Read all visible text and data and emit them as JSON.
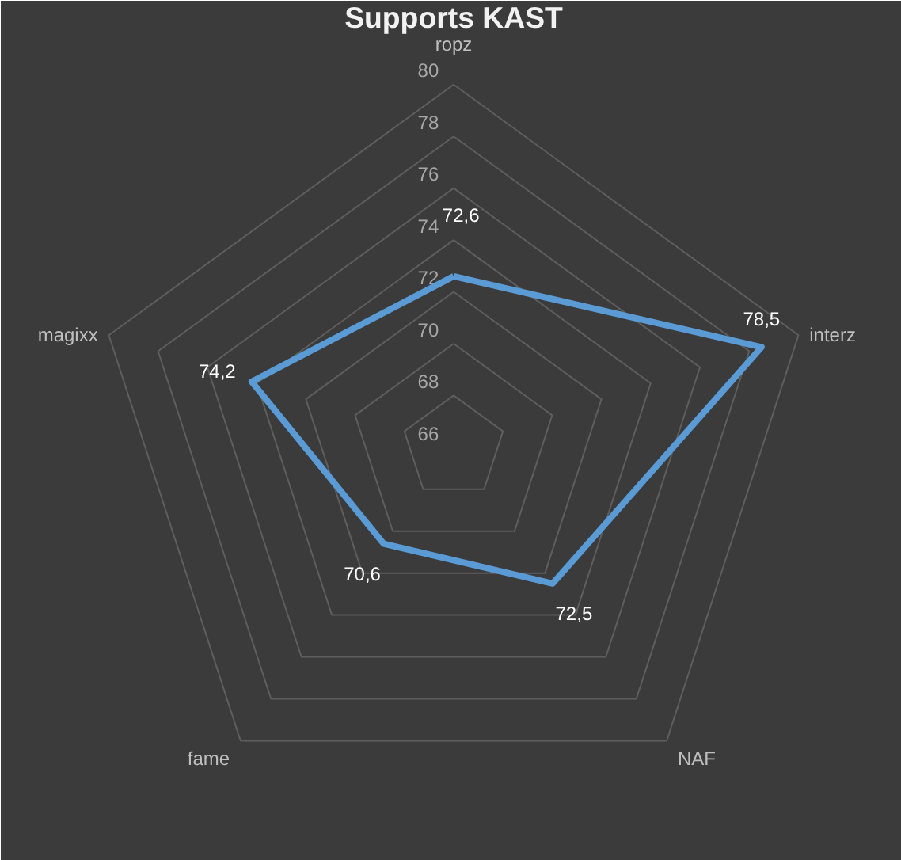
{
  "chart_data": {
    "type": "radar",
    "title": "Supports KAST",
    "categories": [
      "ropz",
      "interz",
      "NAF",
      "fame",
      "magixx"
    ],
    "series": [
      {
        "color": "#5b9bd5",
        "values": [
          72.6,
          78.5,
          72.5,
          70.6,
          74.2
        ],
        "value_labels": [
          "72,6",
          "78,5",
          "72,5",
          "70,6",
          "74,2"
        ]
      }
    ],
    "ylim": [
      66,
      80
    ],
    "yticks": [
      66,
      68,
      70,
      72,
      74,
      76,
      78,
      80
    ],
    "grid": true,
    "data_labels": true
  }
}
